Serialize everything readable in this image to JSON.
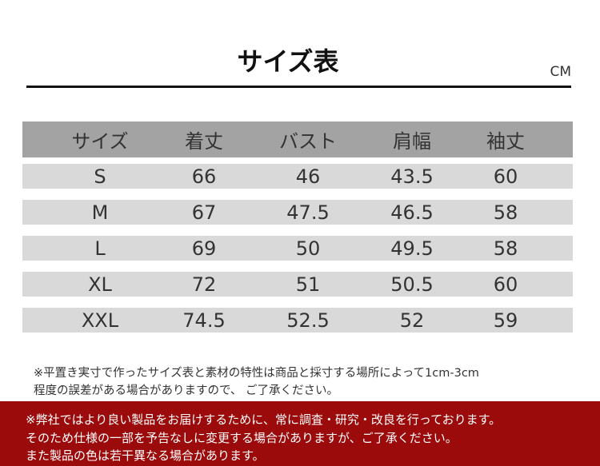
{
  "title": "サイズ表",
  "unit": "CM",
  "table": {
    "headers": [
      "サイズ",
      "着丈",
      "バスト",
      "肩幅",
      "袖丈"
    ],
    "rows": [
      [
        "S",
        "66",
        "46",
        "43.5",
        "60"
      ],
      [
        "M",
        "67",
        "47.5",
        "46.5",
        "58"
      ],
      [
        "L",
        "69",
        "50",
        "49.5",
        "58"
      ],
      [
        "XL",
        "72",
        "51",
        "50.5",
        "60"
      ],
      [
        "XXL",
        "74.5",
        "52.5",
        "52",
        "59"
      ]
    ]
  },
  "notes": [
    "※平置き実寸で作ったサイズ表と素材の特性は商品と採寸する場所によって1cm-3cm",
    "程度の誤差がある場合がありますので、 ご了承ください。"
  ],
  "notice": [
    "※弊社ではより良い製品をお届けするために、常に調査・研究・改良を行っております。",
    "そのため仕様の一部を予告なしに変更する場合がありますが、ご了承ください。",
    "また製品の色は若干異なる場合があります。"
  ],
  "colors": {
    "header_bg": "#a3a3a3",
    "row_bg": "#d9d9d9",
    "notice_bg": "#9b0b0b"
  }
}
